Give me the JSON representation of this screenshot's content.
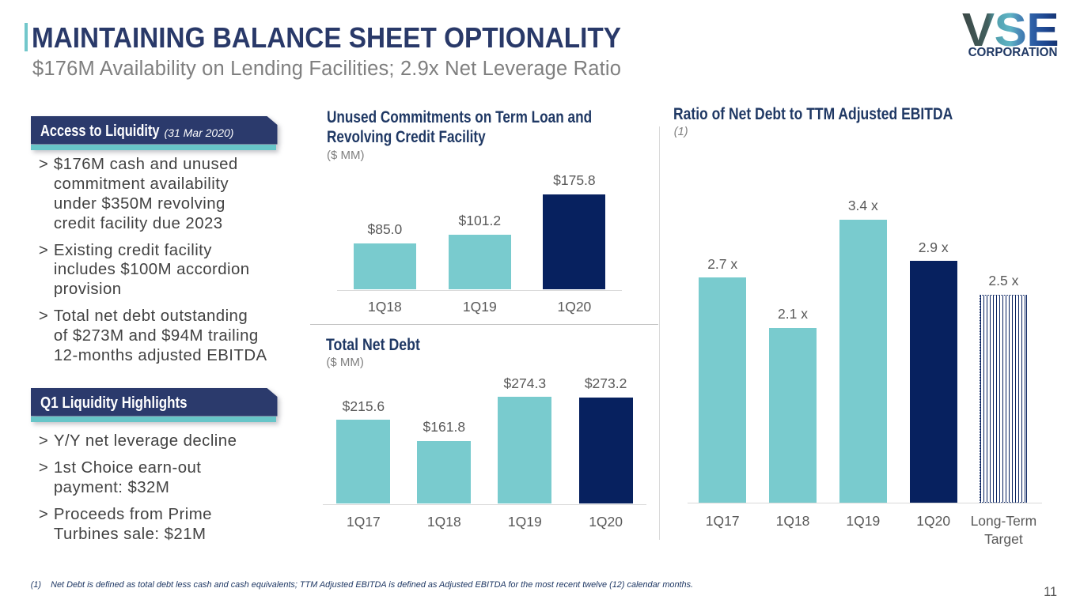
{
  "slide": {
    "title": "MAINTAINING BALANCE SHEET OPTIONALITY",
    "subtitle": "$176M Availability on Lending Facilities; 2.9x Net Leverage Ratio",
    "footnote": "(1)    Net Debt is defined as total debt less cash and cash equivalents; TTM Adjusted EBITDA is defined as Adjusted EBITDA for the most recent twelve (12) calendar months.",
    "page_number": "11"
  },
  "logo": {
    "brand": "VSE",
    "subtext": "CORPORATION"
  },
  "left_panel": {
    "bullet_char": ">",
    "sections": [
      {
        "header": "Access to Liquidity",
        "header_suffix": "(31 Mar 2020)",
        "bullets": [
          "$176M cash and unused\ncommitment availability\nunder $350M revolving\ncredit facility due 2023",
          "Existing credit facility\nincludes $100M accordion\nprovision",
          "Total net debt outstanding\nof $273M and $94M trailing\n12-months adjusted EBITDA"
        ]
      },
      {
        "header": "Q1 Liquidity Highlights",
        "header_suffix": "",
        "bullets": [
          "Y/Y net leverage decline",
          "1st Choice earn-out\npayment: $32M",
          "Proceeds from Prime\nTurbines sale: $21M"
        ]
      }
    ]
  },
  "chart_data": [
    {
      "type": "bar",
      "title": "Unused Commitments on Term Loan and\nRevolving Credit Facility",
      "subtitle": "($ MM)",
      "categories": [
        "1Q18",
        "1Q19",
        "1Q20"
      ],
      "values": [
        85.0,
        101.2,
        175.8
      ],
      "labels": [
        "$85.0",
        "$101.2",
        "$175.8"
      ],
      "bar_styles": [
        "teal",
        "teal",
        "navy"
      ],
      "ylim": [
        0,
        200
      ],
      "grid": false,
      "legend": "none"
    },
    {
      "type": "bar",
      "title": "Total Net Debt",
      "subtitle": "($ MM)",
      "categories": [
        "1Q17",
        "1Q18",
        "1Q19",
        "1Q20"
      ],
      "values": [
        215.6,
        161.8,
        274.3,
        273.2
      ],
      "labels": [
        "$215.6",
        "$161.8",
        "$274.3",
        "$273.2"
      ],
      "bar_styles": [
        "teal",
        "teal",
        "teal",
        "navy"
      ],
      "ylim": [
        0,
        300
      ],
      "grid": false,
      "legend": "none"
    },
    {
      "type": "bar",
      "title": "Ratio of Net Debt to TTM Adjusted EBITDA",
      "subtitle": "(1)",
      "categories": [
        "1Q17",
        "1Q18",
        "1Q19",
        "1Q20",
        "Long-Term\nTarget"
      ],
      "values": [
        2.7,
        2.1,
        3.4,
        2.9,
        2.5
      ],
      "labels": [
        "2.7 x",
        "2.1 x",
        "3.4 x",
        "2.9 x",
        "2.5 x"
      ],
      "bar_styles": [
        "teal",
        "teal",
        "teal",
        "navy",
        "striped"
      ],
      "ylim": [
        0,
        4
      ],
      "grid": false,
      "legend": "none"
    }
  ],
  "colors": {
    "teal_bar": "#79cbce",
    "navy_bar": "#07215f",
    "ribbon_navy": "#2b3a6c",
    "ribbon_teal": "#67c5c8",
    "title_navy": "#293969",
    "chart_title_navy": "#1f3864",
    "body_text_gray": "#424242",
    "label_gray": "#595959",
    "subtitle_gray": "#7f7f7f"
  }
}
